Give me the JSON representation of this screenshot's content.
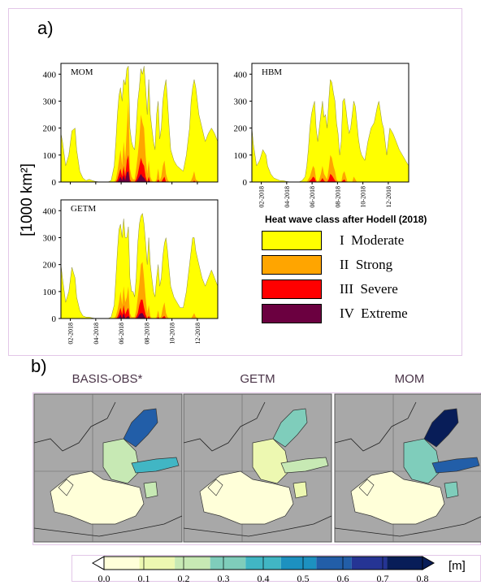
{
  "panel_a": {
    "label": "a)",
    "ylabel": "[1000 km²]",
    "legend_title": "Heat wave class after Hodell (2018)",
    "legend": [
      {
        "label": "I  Moderate",
        "color": "#ffff00"
      },
      {
        "label": "II  Strong",
        "color": "#ffa500"
      },
      {
        "label": "III  Severe",
        "color": "#ff0000"
      },
      {
        "label": "IV  Extreme",
        "color": "#6b0040"
      }
    ]
  },
  "panel_b": {
    "label": "b)",
    "titles": [
      "BASIS-OBS*",
      "GETM",
      "MOM"
    ],
    "colorbar_unit": "[m]",
    "colorbar_ticks": [
      "0.0",
      "0.1",
      "0.2",
      "0.3",
      "0.4",
      "0.5",
      "0.6",
      "0.7",
      "0.8"
    ],
    "colorbar_colors": [
      "#ffffd9",
      "#edf8b1",
      "#c7e9b4",
      "#7fcdbb",
      "#41b6c4",
      "#1d91c0",
      "#225ea8",
      "#253494",
      "#081d58"
    ]
  },
  "chart_data": [
    {
      "type": "area",
      "name": "MOM",
      "title": "MOM",
      "x_ticks": [
        "02-2018",
        "04-2018",
        "06-2018",
        "08-2018",
        "10-2018",
        "12-2018"
      ],
      "yticks": [
        0,
        100,
        200,
        300,
        400
      ],
      "ylim": [
        0,
        440
      ],
      "x": [
        0,
        0.01,
        0.03,
        0.05,
        0.07,
        0.09,
        0.1,
        0.12,
        0.14,
        0.16,
        0.18,
        0.2,
        0.22,
        0.25,
        0.28,
        0.3,
        0.32,
        0.34,
        0.35,
        0.36,
        0.37,
        0.38,
        0.39,
        0.4,
        0.41,
        0.42,
        0.43,
        0.44,
        0.45,
        0.46,
        0.47,
        0.48,
        0.49,
        0.5,
        0.51,
        0.52,
        0.53,
        0.54,
        0.55,
        0.56,
        0.57,
        0.58,
        0.59,
        0.6,
        0.61,
        0.62,
        0.63,
        0.64,
        0.65,
        0.66,
        0.67,
        0.68,
        0.69,
        0.7,
        0.72,
        0.74,
        0.76,
        0.78,
        0.8,
        0.81,
        0.82,
        0.83,
        0.84,
        0.85,
        0.86,
        0.88,
        0.9,
        0.92,
        0.94,
        0.96,
        0.98,
        1.0
      ],
      "moderate": [
        180,
        150,
        60,
        100,
        190,
        200,
        120,
        40,
        15,
        5,
        10,
        5,
        2,
        0,
        0,
        0,
        5,
        60,
        150,
        250,
        320,
        350,
        300,
        380,
        360,
        420,
        430,
        200,
        150,
        130,
        120,
        200,
        300,
        350,
        420,
        400,
        430,
        350,
        250,
        380,
        250,
        200,
        150,
        120,
        250,
        300,
        160,
        200,
        300,
        350,
        380,
        300,
        200,
        120,
        80,
        60,
        50,
        40,
        100,
        150,
        200,
        300,
        350,
        380,
        350,
        250,
        200,
        150,
        180,
        200,
        180,
        150
      ],
      "strong": [
        0,
        0,
        0,
        0,
        0,
        0,
        0,
        0,
        0,
        0,
        0,
        0,
        0,
        0,
        0,
        0,
        0,
        0,
        10,
        40,
        80,
        120,
        60,
        150,
        80,
        200,
        300,
        50,
        20,
        10,
        10,
        50,
        100,
        160,
        250,
        220,
        200,
        100,
        30,
        80,
        20,
        5,
        0,
        0,
        10,
        50,
        5,
        20,
        60,
        80,
        30,
        10,
        0,
        0,
        0,
        0,
        0,
        0,
        0,
        0,
        0,
        5,
        20,
        40,
        10,
        0,
        0,
        0,
        0,
        0,
        0,
        0
      ],
      "severe": [
        0,
        0,
        0,
        0,
        0,
        0,
        0,
        0,
        0,
        0,
        0,
        0,
        0,
        0,
        0,
        0,
        0,
        0,
        0,
        10,
        30,
        50,
        20,
        60,
        20,
        80,
        100,
        10,
        0,
        0,
        0,
        10,
        30,
        60,
        90,
        70,
        60,
        20,
        0,
        20,
        0,
        0,
        0,
        0,
        0,
        10,
        0,
        0,
        10,
        20,
        0,
        0,
        0,
        0,
        0,
        0,
        0,
        0,
        0,
        0,
        0,
        0,
        0,
        5,
        0,
        0,
        0,
        0,
        0,
        0,
        0,
        0
      ],
      "extreme": [
        0,
        0,
        0,
        0,
        0,
        0,
        0,
        0,
        0,
        0,
        0,
        0,
        0,
        0,
        0,
        0,
        0,
        0,
        0,
        0,
        10,
        20,
        5,
        25,
        5,
        35,
        40,
        0,
        0,
        0,
        0,
        0,
        10,
        20,
        30,
        20,
        15,
        5,
        0,
        5,
        0,
        0,
        0,
        0,
        0,
        0,
        0,
        0,
        0,
        0,
        0,
        0,
        0,
        0,
        0,
        0,
        0,
        0,
        0,
        0,
        0,
        0,
        0,
        0,
        0,
        0,
        0,
        0,
        0,
        0,
        0,
        0
      ]
    },
    {
      "type": "area",
      "name": "HBM",
      "title": "HBM",
      "x_ticks": [
        "02-2018",
        "04-2018",
        "06-2018",
        "08-2018",
        "10-2018",
        "12-2018"
      ],
      "yticks": [
        0,
        100,
        200,
        300,
        400
      ],
      "ylim": [
        0,
        440
      ],
      "x": [
        0,
        0.01,
        0.03,
        0.05,
        0.07,
        0.09,
        0.1,
        0.12,
        0.14,
        0.16,
        0.18,
        0.2,
        0.22,
        0.25,
        0.28,
        0.3,
        0.32,
        0.34,
        0.35,
        0.36,
        0.37,
        0.38,
        0.39,
        0.4,
        0.41,
        0.42,
        0.43,
        0.44,
        0.45,
        0.46,
        0.47,
        0.48,
        0.49,
        0.5,
        0.51,
        0.52,
        0.53,
        0.54,
        0.55,
        0.56,
        0.57,
        0.58,
        0.59,
        0.6,
        0.61,
        0.62,
        0.63,
        0.64,
        0.65,
        0.66,
        0.67,
        0.68,
        0.69,
        0.7,
        0.72,
        0.74,
        0.76,
        0.78,
        0.8,
        0.81,
        0.82,
        0.83,
        0.84,
        0.85,
        0.86,
        0.88,
        0.9,
        0.92,
        0.94,
        0.96,
        0.98,
        1.0
      ],
      "moderate": [
        200,
        140,
        60,
        80,
        120,
        100,
        60,
        30,
        15,
        10,
        5,
        5,
        2,
        0,
        0,
        0,
        5,
        20,
        60,
        120,
        200,
        250,
        280,
        300,
        200,
        150,
        200,
        250,
        300,
        240,
        250,
        200,
        300,
        380,
        370,
        330,
        300,
        220,
        180,
        100,
        150,
        300,
        310,
        270,
        220,
        180,
        200,
        250,
        300,
        280,
        220,
        160,
        120,
        100,
        80,
        150,
        200,
        220,
        280,
        300,
        260,
        220,
        200,
        150,
        100,
        200,
        180,
        150,
        120,
        100,
        80,
        60
      ],
      "strong": [
        0,
        0,
        0,
        0,
        0,
        0,
        0,
        0,
        0,
        0,
        0,
        0,
        0,
        0,
        0,
        0,
        0,
        0,
        0,
        10,
        20,
        40,
        60,
        50,
        10,
        0,
        10,
        30,
        60,
        30,
        20,
        10,
        50,
        100,
        90,
        60,
        40,
        10,
        0,
        0,
        0,
        30,
        40,
        20,
        0,
        0,
        0,
        0,
        20,
        10,
        0,
        0,
        0,
        0,
        0,
        0,
        0,
        0,
        0,
        0,
        0,
        0,
        0,
        0,
        0,
        0,
        0,
        0,
        0,
        0,
        0,
        0
      ],
      "severe": [
        0,
        0,
        0,
        0,
        0,
        0,
        0,
        0,
        0,
        0,
        0,
        0,
        0,
        0,
        0,
        0,
        0,
        0,
        0,
        0,
        5,
        10,
        20,
        15,
        0,
        0,
        0,
        5,
        15,
        5,
        0,
        0,
        10,
        30,
        25,
        15,
        5,
        0,
        0,
        0,
        0,
        5,
        10,
        0,
        0,
        0,
        0,
        0,
        0,
        0,
        0,
        0,
        0,
        0,
        0,
        0,
        0,
        0,
        0,
        0,
        0,
        0,
        0,
        0,
        0,
        0,
        0,
        0,
        0,
        0,
        0,
        0
      ],
      "extreme": [
        0,
        0,
        0,
        0,
        0,
        0,
        0,
        0,
        0,
        0,
        0,
        0,
        0,
        0,
        0,
        0,
        0,
        0,
        0,
        0,
        0,
        0,
        0,
        0,
        0,
        0,
        0,
        0,
        0,
        0,
        0,
        0,
        0,
        0,
        0,
        0,
        0,
        0,
        0,
        0,
        0,
        0,
        0,
        0,
        0,
        0,
        0,
        0,
        0,
        0,
        0,
        0,
        0,
        0,
        0,
        0,
        0,
        0,
        0,
        0,
        0,
        0,
        0,
        0,
        0,
        0,
        0,
        0,
        0,
        0,
        0,
        0
      ]
    },
    {
      "type": "area",
      "name": "GETM",
      "title": "GETM",
      "x_ticks": [
        "02-2018",
        "04-2018",
        "06-2018",
        "08-2018",
        "10-2018",
        "12-2018"
      ],
      "yticks": [
        0,
        100,
        200,
        300,
        400
      ],
      "ylim": [
        0,
        440
      ],
      "x": [
        0,
        0.01,
        0.03,
        0.05,
        0.07,
        0.09,
        0.1,
        0.12,
        0.14,
        0.16,
        0.18,
        0.2,
        0.22,
        0.25,
        0.28,
        0.3,
        0.32,
        0.34,
        0.35,
        0.36,
        0.37,
        0.38,
        0.39,
        0.4,
        0.41,
        0.42,
        0.43,
        0.44,
        0.45,
        0.46,
        0.47,
        0.48,
        0.49,
        0.5,
        0.51,
        0.52,
        0.53,
        0.54,
        0.55,
        0.56,
        0.57,
        0.58,
        0.59,
        0.6,
        0.61,
        0.62,
        0.63,
        0.64,
        0.65,
        0.66,
        0.67,
        0.68,
        0.69,
        0.7,
        0.72,
        0.74,
        0.76,
        0.78,
        0.8,
        0.81,
        0.82,
        0.83,
        0.84,
        0.85,
        0.86,
        0.88,
        0.9,
        0.92,
        0.94,
        0.96,
        0.98,
        1.0
      ],
      "moderate": [
        200,
        150,
        60,
        100,
        190,
        150,
        80,
        30,
        10,
        5,
        5,
        2,
        0,
        0,
        0,
        0,
        5,
        50,
        150,
        250,
        330,
        350,
        300,
        370,
        300,
        300,
        340,
        150,
        100,
        100,
        80,
        150,
        280,
        350,
        380,
        390,
        350,
        280,
        200,
        300,
        200,
        150,
        100,
        80,
        150,
        200,
        120,
        150,
        230,
        280,
        300,
        250,
        180,
        120,
        80,
        60,
        40,
        40,
        100,
        150,
        200,
        250,
        300,
        300,
        250,
        200,
        150,
        120,
        150,
        180,
        150,
        120
      ],
      "strong": [
        0,
        0,
        0,
        0,
        0,
        0,
        0,
        0,
        0,
        0,
        0,
        0,
        0,
        0,
        0,
        0,
        0,
        0,
        10,
        30,
        60,
        100,
        50,
        120,
        60,
        80,
        120,
        20,
        5,
        5,
        5,
        30,
        80,
        130,
        200,
        210,
        150,
        80,
        20,
        50,
        10,
        0,
        0,
        0,
        5,
        30,
        0,
        10,
        40,
        60,
        20,
        5,
        0,
        0,
        0,
        0,
        0,
        0,
        0,
        0,
        0,
        0,
        10,
        20,
        5,
        0,
        0,
        0,
        0,
        0,
        0,
        0
      ],
      "severe": [
        0,
        0,
        0,
        0,
        0,
        0,
        0,
        0,
        0,
        0,
        0,
        0,
        0,
        0,
        0,
        0,
        0,
        0,
        0,
        5,
        20,
        40,
        15,
        50,
        15,
        30,
        40,
        0,
        0,
        0,
        0,
        5,
        20,
        50,
        70,
        70,
        40,
        15,
        0,
        10,
        0,
        0,
        0,
        0,
        0,
        5,
        0,
        0,
        5,
        10,
        0,
        0,
        0,
        0,
        0,
        0,
        0,
        0,
        0,
        0,
        0,
        0,
        0,
        0,
        0,
        0,
        0,
        0,
        0,
        0,
        0,
        0
      ],
      "extreme": [
        0,
        0,
        0,
        0,
        0,
        0,
        0,
        0,
        0,
        0,
        0,
        0,
        0,
        0,
        0,
        0,
        0,
        0,
        0,
        0,
        5,
        15,
        0,
        20,
        0,
        5,
        10,
        0,
        0,
        0,
        0,
        0,
        5,
        15,
        20,
        20,
        10,
        0,
        0,
        0,
        0,
        0,
        0,
        0,
        0,
        0,
        0,
        0,
        0,
        0,
        0,
        0,
        0,
        0,
        0,
        0,
        0,
        0,
        0,
        0,
        0,
        0,
        0,
        0,
        0,
        0,
        0,
        0,
        0,
        0,
        0,
        0
      ]
    }
  ]
}
